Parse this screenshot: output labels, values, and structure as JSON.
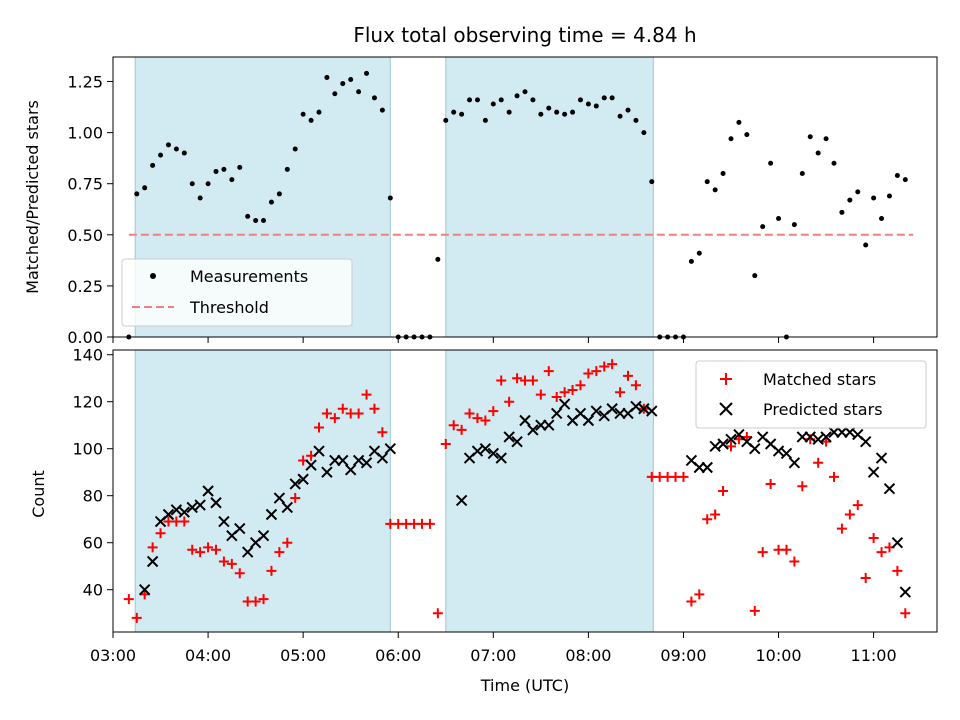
{
  "title": "Flux total observing time = 4.84 h",
  "chart_data": [
    {
      "type": "scatter",
      "ylabel": "Matched/Predicted stars",
      "xlabel": "",
      "xlim": [
        "03:00",
        "11:40"
      ],
      "ylim": [
        0,
        1.37
      ],
      "yticks": [
        "0.00",
        "0.25",
        "0.50",
        "0.75",
        "1.00",
        "1.25"
      ],
      "shaded_intervals": [
        [
          "03:14",
          "05:55"
        ],
        [
          "06:30",
          "08:41"
        ]
      ],
      "threshold": {
        "value": 0.5,
        "x_range": [
          "03:10",
          "11:25"
        ]
      },
      "legend": {
        "position": "lower-left",
        "entries": [
          "Measurements",
          "Threshold"
        ]
      },
      "colors": {
        "shade": "#add8e6",
        "points": "#000000",
        "threshold": "#f08080"
      },
      "series": [
        {
          "name": "Measurements",
          "x": [
            "03:10",
            "03:15",
            "03:20",
            "03:25",
            "03:30",
            "03:35",
            "03:40",
            "03:45",
            "03:50",
            "03:55",
            "04:00",
            "04:05",
            "04:10",
            "04:15",
            "04:20",
            "04:25",
            "04:30",
            "04:35",
            "04:40",
            "04:45",
            "04:50",
            "04:55",
            "05:00",
            "05:05",
            "05:10",
            "05:15",
            "05:20",
            "05:25",
            "05:30",
            "05:35",
            "05:40",
            "05:45",
            "05:50",
            "05:55",
            "06:00",
            "06:05",
            "06:10",
            "06:15",
            "06:20",
            "06:25",
            "06:30",
            "06:35",
            "06:40",
            "06:45",
            "06:50",
            "06:55",
            "07:00",
            "07:05",
            "07:10",
            "07:15",
            "07:20",
            "07:25",
            "07:30",
            "07:35",
            "07:40",
            "07:45",
            "07:50",
            "07:55",
            "08:00",
            "08:05",
            "08:10",
            "08:15",
            "08:20",
            "08:25",
            "08:30",
            "08:35",
            "08:40",
            "08:45",
            "08:50",
            "08:55",
            "09:00",
            "09:05",
            "09:10",
            "09:15",
            "09:20",
            "09:25",
            "09:30",
            "09:35",
            "09:40",
            "09:45",
            "09:50",
            "09:55",
            "10:00",
            "10:05",
            "10:10",
            "10:15",
            "10:20",
            "10:25",
            "10:30",
            "10:35",
            "10:40",
            "10:45",
            "10:50",
            "10:55",
            "11:00",
            "11:05",
            "11:10",
            "11:15",
            "11:20"
          ],
          "y": [
            0.0,
            0.7,
            0.73,
            0.84,
            0.89,
            0.94,
            0.92,
            0.9,
            0.75,
            0.68,
            0.75,
            0.81,
            0.82,
            0.77,
            0.83,
            0.59,
            0.57,
            0.57,
            0.66,
            0.7,
            0.82,
            0.92,
            1.09,
            1.06,
            1.1,
            1.27,
            1.19,
            1.24,
            1.26,
            1.2,
            1.29,
            1.17,
            1.11,
            0.68,
            0.0,
            0.0,
            0.0,
            0.0,
            0.0,
            0.38,
            1.06,
            1.1,
            1.09,
            1.16,
            1.16,
            1.06,
            1.14,
            1.16,
            1.1,
            1.18,
            1.2,
            1.16,
            1.09,
            1.12,
            1.1,
            1.09,
            1.1,
            1.16,
            1.14,
            1.13,
            1.17,
            1.17,
            1.08,
            1.11,
            1.06,
            1.0,
            0.76,
            0.0,
            0.0,
            0.0,
            0.0,
            0.37,
            0.41,
            0.76,
            0.72,
            0.8,
            0.97,
            1.05,
            0.99,
            0.3,
            0.54,
            0.85,
            0.58,
            0.0,
            0.55,
            0.8,
            0.98,
            0.9,
            0.97,
            0.85,
            0.61,
            0.67,
            0.71,
            0.45,
            0.68,
            0.58,
            0.69,
            0.79,
            0.77
          ]
        }
      ]
    },
    {
      "type": "scatter",
      "ylabel": "Count",
      "xlabel": "Time (UTC)",
      "xlim": [
        "03:00",
        "11:40"
      ],
      "ylim": [
        22,
        142
      ],
      "yticks": [
        "40",
        "60",
        "80",
        "100",
        "120",
        "140"
      ],
      "xticks": [
        "03:00",
        "04:00",
        "05:00",
        "06:00",
        "07:00",
        "08:00",
        "09:00",
        "10:00",
        "11:00"
      ],
      "shaded_intervals": [
        [
          "03:14",
          "05:55"
        ],
        [
          "06:30",
          "08:41"
        ]
      ],
      "legend": {
        "position": "upper-right",
        "entries": [
          "Matched stars",
          "Predicted stars"
        ]
      },
      "colors": {
        "shade": "#add8e6",
        "matched": "#ff0000",
        "predicted": "#000000"
      },
      "series": [
        {
          "name": "Matched stars",
          "x": [
            "03:10",
            "03:15",
            "03:20",
            "03:25",
            "03:30",
            "03:35",
            "03:40",
            "03:45",
            "03:50",
            "03:55",
            "04:00",
            "04:05",
            "04:10",
            "04:15",
            "04:20",
            "04:25",
            "04:30",
            "04:35",
            "04:40",
            "04:45",
            "04:50",
            "04:55",
            "05:00",
            "05:05",
            "05:10",
            "05:15",
            "05:20",
            "05:25",
            "05:30",
            "05:35",
            "05:40",
            "05:45",
            "05:50",
            "05:55",
            "06:00",
            "06:05",
            "06:10",
            "06:15",
            "06:20",
            "06:25",
            "06:30",
            "06:35",
            "06:40",
            "06:45",
            "06:50",
            "06:55",
            "07:00",
            "07:05",
            "07:10",
            "07:15",
            "07:20",
            "07:25",
            "07:30",
            "07:35",
            "07:40",
            "07:45",
            "07:50",
            "07:55",
            "08:00",
            "08:05",
            "08:10",
            "08:15",
            "08:20",
            "08:25",
            "08:30",
            "08:35",
            "08:40",
            "08:45",
            "08:50",
            "08:55",
            "09:00",
            "09:05",
            "09:10",
            "09:15",
            "09:20",
            "09:25",
            "09:30",
            "09:35",
            "09:40",
            "09:45",
            "09:50",
            "09:55",
            "10:00",
            "10:05",
            "10:10",
            "10:15",
            "10:20",
            "10:25",
            "10:30",
            "10:35",
            "10:40",
            "10:45",
            "10:50",
            "10:55",
            "11:00",
            "11:05",
            "11:10",
            "11:15",
            "11:20"
          ],
          "y": [
            36,
            28,
            38,
            58,
            64,
            69,
            69,
            69,
            57,
            56,
            58,
            57,
            52,
            51,
            47,
            35,
            35,
            36,
            48,
            56,
            60,
            79,
            95,
            97,
            109,
            115,
            113,
            117,
            115,
            115,
            123,
            117,
            107,
            68,
            68,
            68,
            68,
            68,
            68,
            30,
            102,
            110,
            108,
            115,
            113,
            112,
            116,
            129,
            120,
            130,
            129,
            129,
            123,
            133,
            122,
            124,
            125,
            127,
            132,
            133,
            135,
            136,
            124,
            131,
            127,
            117,
            88,
            88,
            88,
            88,
            88,
            35,
            38,
            70,
            72,
            82,
            101,
            104,
            105,
            31,
            56,
            85,
            57,
            57,
            52,
            84,
            104,
            94,
            103,
            88,
            66,
            72,
            76,
            45,
            62,
            56,
            58,
            48,
            30
          ]
        },
        {
          "name": "Predicted stars",
          "x": [
            "03:20",
            "03:25",
            "03:30",
            "03:35",
            "03:40",
            "03:45",
            "03:50",
            "03:55",
            "04:00",
            "04:05",
            "04:10",
            "04:15",
            "04:20",
            "04:25",
            "04:30",
            "04:35",
            "04:40",
            "04:45",
            "04:50",
            "04:55",
            "05:00",
            "05:05",
            "05:10",
            "05:15",
            "05:20",
            "05:25",
            "05:30",
            "05:35",
            "05:40",
            "05:45",
            "05:50",
            "05:55",
            "06:40",
            "06:45",
            "06:50",
            "06:55",
            "07:00",
            "07:05",
            "07:10",
            "07:15",
            "07:20",
            "07:25",
            "07:30",
            "07:35",
            "07:40",
            "07:45",
            "07:50",
            "07:55",
            "08:00",
            "08:05",
            "08:10",
            "08:15",
            "08:20",
            "08:25",
            "08:30",
            "08:35",
            "08:40",
            "09:05",
            "09:10",
            "09:15",
            "09:20",
            "09:25",
            "09:30",
            "09:35",
            "09:40",
            "09:45",
            "09:50",
            "09:55",
            "10:00",
            "10:05",
            "10:10",
            "10:15",
            "10:20",
            "10:25",
            "10:30",
            "10:35",
            "10:40",
            "10:45",
            "10:50",
            "10:55",
            "11:00",
            "11:05",
            "11:10",
            "11:15",
            "11:20"
          ],
          "y": [
            40,
            52,
            69,
            72,
            74,
            73,
            75,
            76,
            82,
            77,
            69,
            63,
            66,
            56,
            60,
            63,
            72,
            79,
            75,
            85,
            87,
            93,
            99,
            90,
            95,
            95,
            91,
            95,
            94,
            99,
            96,
            100,
            78,
            96,
            99,
            100,
            98,
            96,
            105,
            103,
            112,
            108,
            110,
            110,
            115,
            119,
            112,
            115,
            112,
            116,
            114,
            117,
            115,
            115,
            118,
            117,
            116,
            95,
            92,
            92,
            101,
            102,
            104,
            106,
            103,
            100,
            105,
            102,
            99,
            98,
            94,
            105,
            105,
            104,
            105,
            107,
            107,
            107,
            106,
            103,
            90,
            96,
            83,
            60,
            39
          ]
        }
      ]
    }
  ]
}
